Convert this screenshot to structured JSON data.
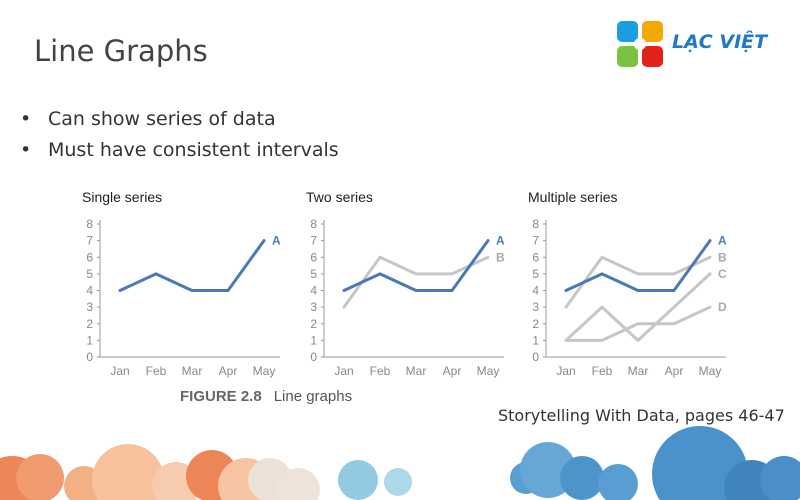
{
  "slide": {
    "title": "Line Graphs",
    "bullets": [
      "Can show series of data",
      "Must have consistent intervals"
    ],
    "source_note": "Storytelling With Data, pages 46-47"
  },
  "logo": {
    "text": "LẠC VIỆT",
    "colors": [
      "#1b9ee0",
      "#f2a900",
      "#7cc242",
      "#e2231a"
    ]
  },
  "figure": {
    "label": "FIGURE 2.8",
    "caption": "Line graphs"
  },
  "colors": {
    "highlight": "#4a79b5",
    "muted": "#c6c6c6",
    "axis": "#999999",
    "highlight_label": "#4a79b5",
    "muted_label": "#aaaaaa"
  },
  "chart_data": [
    {
      "type": "line",
      "title": "Single series",
      "categories": [
        "Jan",
        "Feb",
        "Mar",
        "Apr",
        "May"
      ],
      "ylim": [
        0,
        8
      ],
      "yticks": [
        "0",
        "1",
        "2",
        "3",
        "4",
        "5",
        "6",
        "7",
        "8"
      ],
      "series": [
        {
          "name": "A",
          "values": [
            4,
            5,
            4,
            4,
            7
          ],
          "highlight": true
        }
      ]
    },
    {
      "type": "line",
      "title": "Two series",
      "categories": [
        "Jan",
        "Feb",
        "Mar",
        "Apr",
        "May"
      ],
      "ylim": [
        0,
        8
      ],
      "yticks": [
        "0",
        "1",
        "2",
        "3",
        "4",
        "5",
        "6",
        "7",
        "8"
      ],
      "series": [
        {
          "name": "B",
          "values": [
            3,
            6,
            5,
            5,
            6
          ],
          "highlight": false
        },
        {
          "name": "A",
          "values": [
            4,
            5,
            4,
            4,
            7
          ],
          "highlight": true
        }
      ]
    },
    {
      "type": "line",
      "title": "Multiple series",
      "categories": [
        "Jan",
        "Feb",
        "Mar",
        "Apr",
        "May"
      ],
      "ylim": [
        0,
        8
      ],
      "yticks": [
        "0",
        "1",
        "2",
        "3",
        "4",
        "5",
        "6",
        "7",
        "8"
      ],
      "series": [
        {
          "name": "D",
          "values": [
            1,
            1,
            2,
            2,
            3
          ],
          "highlight": false
        },
        {
          "name": "C",
          "values": [
            1,
            3,
            1,
            3,
            5
          ],
          "highlight": false
        },
        {
          "name": "B",
          "values": [
            3,
            6,
            5,
            5,
            6
          ],
          "highlight": false
        },
        {
          "name": "A",
          "values": [
            4,
            5,
            4,
            4,
            7
          ],
          "highlight": true
        }
      ]
    }
  ]
}
